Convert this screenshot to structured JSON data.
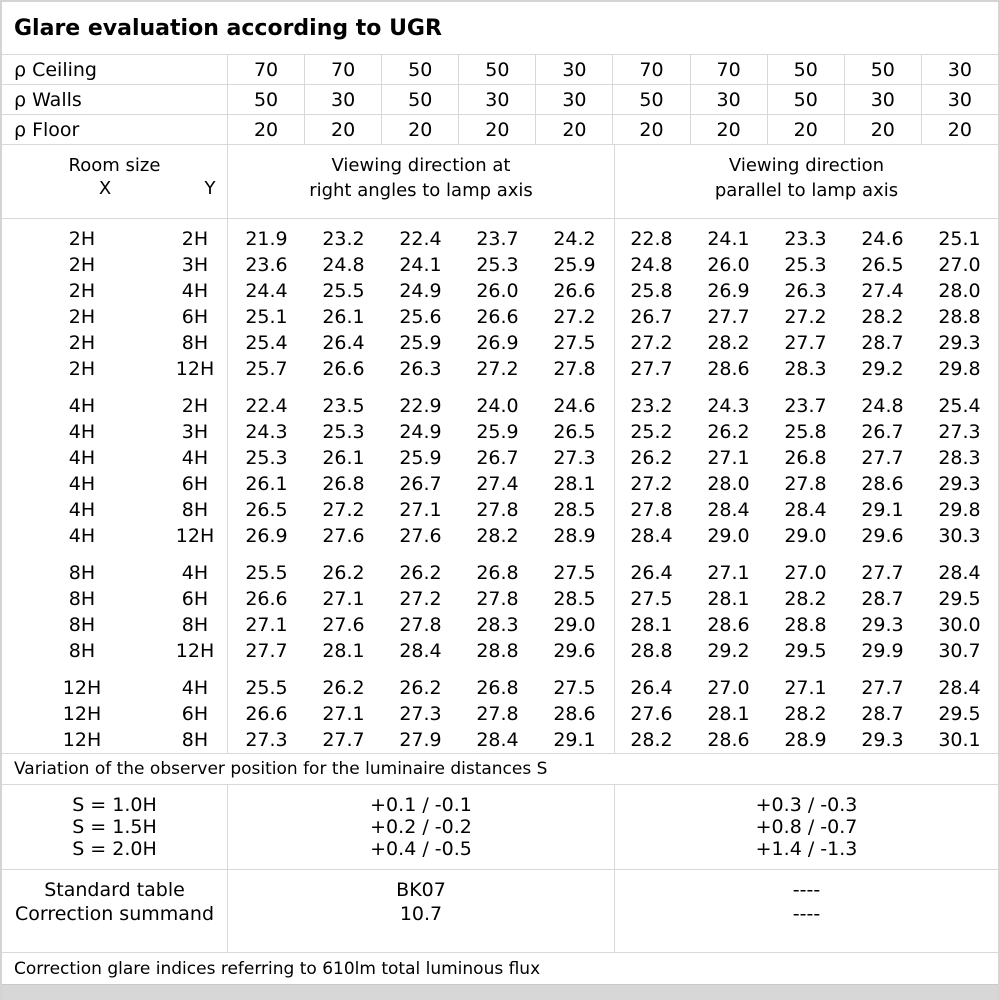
{
  "title": "Glare evaluation according to UGR",
  "reflectances": {
    "rows": [
      {
        "label": "ρ Ceiling",
        "values": [
          "70",
          "70",
          "50",
          "50",
          "30",
          "70",
          "70",
          "50",
          "50",
          "30"
        ]
      },
      {
        "label": "ρ Walls",
        "values": [
          "50",
          "30",
          "50",
          "30",
          "30",
          "50",
          "30",
          "50",
          "30",
          "30"
        ]
      },
      {
        "label": "ρ Floor",
        "values": [
          "20",
          "20",
          "20",
          "20",
          "20",
          "20",
          "20",
          "20",
          "20",
          "20"
        ]
      }
    ]
  },
  "header": {
    "room_size_label": "Room size",
    "x_label": "X",
    "y_label": "Y",
    "right_angle_line1": "Viewing direction at",
    "right_angle_line2": "right angles to lamp axis",
    "parallel_line1": "Viewing direction",
    "parallel_line2": "parallel to lamp axis"
  },
  "ugr_groups": [
    {
      "rows": [
        {
          "x": "2H",
          "y": "2H",
          "values": [
            "21.9",
            "23.2",
            "22.4",
            "23.7",
            "24.2",
            "22.8",
            "24.1",
            "23.3",
            "24.6",
            "25.1"
          ]
        },
        {
          "x": "2H",
          "y": "3H",
          "values": [
            "23.6",
            "24.8",
            "24.1",
            "25.3",
            "25.9",
            "24.8",
            "26.0",
            "25.3",
            "26.5",
            "27.0"
          ]
        },
        {
          "x": "2H",
          "y": "4H",
          "values": [
            "24.4",
            "25.5",
            "24.9",
            "26.0",
            "26.6",
            "25.8",
            "26.9",
            "26.3",
            "27.4",
            "28.0"
          ]
        },
        {
          "x": "2H",
          "y": "6H",
          "values": [
            "25.1",
            "26.1",
            "25.6",
            "26.6",
            "27.2",
            "26.7",
            "27.7",
            "27.2",
            "28.2",
            "28.8"
          ]
        },
        {
          "x": "2H",
          "y": "8H",
          "values": [
            "25.4",
            "26.4",
            "25.9",
            "26.9",
            "27.5",
            "27.2",
            "28.2",
            "27.7",
            "28.7",
            "29.3"
          ]
        },
        {
          "x": "2H",
          "y": "12H",
          "values": [
            "25.7",
            "26.6",
            "26.3",
            "27.2",
            "27.8",
            "27.7",
            "28.6",
            "28.3",
            "29.2",
            "29.8"
          ]
        }
      ]
    },
    {
      "rows": [
        {
          "x": "4H",
          "y": "2H",
          "values": [
            "22.4",
            "23.5",
            "22.9",
            "24.0",
            "24.6",
            "23.2",
            "24.3",
            "23.7",
            "24.8",
            "25.4"
          ]
        },
        {
          "x": "4H",
          "y": "3H",
          "values": [
            "24.3",
            "25.3",
            "24.9",
            "25.9",
            "26.5",
            "25.2",
            "26.2",
            "25.8",
            "26.7",
            "27.3"
          ]
        },
        {
          "x": "4H",
          "y": "4H",
          "values": [
            "25.3",
            "26.1",
            "25.9",
            "26.7",
            "27.3",
            "26.2",
            "27.1",
            "26.8",
            "27.7",
            "28.3"
          ]
        },
        {
          "x": "4H",
          "y": "6H",
          "values": [
            "26.1",
            "26.8",
            "26.7",
            "27.4",
            "28.1",
            "27.2",
            "28.0",
            "27.8",
            "28.6",
            "29.3"
          ]
        },
        {
          "x": "4H",
          "y": "8H",
          "values": [
            "26.5",
            "27.2",
            "27.1",
            "27.8",
            "28.5",
            "27.8",
            "28.4",
            "28.4",
            "29.1",
            "29.8"
          ]
        },
        {
          "x": "4H",
          "y": "12H",
          "values": [
            "26.9",
            "27.6",
            "27.6",
            "28.2",
            "28.9",
            "28.4",
            "29.0",
            "29.0",
            "29.6",
            "30.3"
          ]
        }
      ]
    },
    {
      "rows": [
        {
          "x": "8H",
          "y": "4H",
          "values": [
            "25.5",
            "26.2",
            "26.2",
            "26.8",
            "27.5",
            "26.4",
            "27.1",
            "27.0",
            "27.7",
            "28.4"
          ]
        },
        {
          "x": "8H",
          "y": "6H",
          "values": [
            "26.6",
            "27.1",
            "27.2",
            "27.8",
            "28.5",
            "27.5",
            "28.1",
            "28.2",
            "28.7",
            "29.5"
          ]
        },
        {
          "x": "8H",
          "y": "8H",
          "values": [
            "27.1",
            "27.6",
            "27.8",
            "28.3",
            "29.0",
            "28.1",
            "28.6",
            "28.8",
            "29.3",
            "30.0"
          ]
        },
        {
          "x": "8H",
          "y": "12H",
          "values": [
            "27.7",
            "28.1",
            "28.4",
            "28.8",
            "29.6",
            "28.8",
            "29.2",
            "29.5",
            "29.9",
            "30.7"
          ]
        }
      ]
    },
    {
      "rows": [
        {
          "x": "12H",
          "y": "4H",
          "values": [
            "25.5",
            "26.2",
            "26.2",
            "26.8",
            "27.5",
            "26.4",
            "27.0",
            "27.1",
            "27.7",
            "28.4"
          ]
        },
        {
          "x": "12H",
          "y": "6H",
          "values": [
            "26.6",
            "27.1",
            "27.3",
            "27.8",
            "28.6",
            "27.6",
            "28.1",
            "28.2",
            "28.7",
            "29.5"
          ]
        },
        {
          "x": "12H",
          "y": "8H",
          "values": [
            "27.3",
            "27.7",
            "27.9",
            "28.4",
            "29.1",
            "28.2",
            "28.6",
            "28.9",
            "29.3",
            "30.1"
          ]
        }
      ]
    }
  ],
  "variation_note": "Variation of the observer position for the luminaire distances S",
  "spacing_table": {
    "labels": [
      "S = 1.0H",
      "S = 1.5H",
      "S = 2.0H"
    ],
    "right_angle": [
      "+0.1 / -0.1",
      "+0.2 / -0.2",
      "+0.4 / -0.5"
    ],
    "parallel": [
      "+0.3 / -0.3",
      "+0.8 / -0.7",
      "+1.4 / -1.3"
    ]
  },
  "summary_table": {
    "labels": [
      "Standard table",
      "Correction summand"
    ],
    "right_angle": [
      "BK07",
      "10.7"
    ],
    "parallel": [
      "----",
      "----"
    ]
  },
  "footer_note": "Correction glare indices referring to 610lm total luminous flux"
}
